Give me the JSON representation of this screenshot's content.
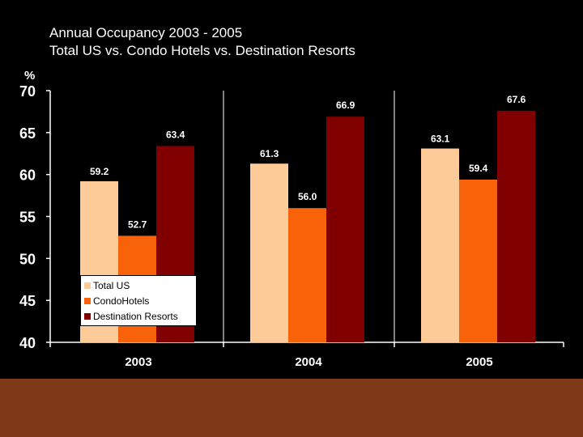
{
  "title": {
    "line1": "Annual Occupancy 2003 - 2005",
    "line2": "Total US vs. Condo Hotels vs. Destination Resorts"
  },
  "colors": {
    "background": "#000000",
    "footer": "#7f3a17",
    "text": "#ffffff"
  },
  "chart_data": {
    "type": "bar",
    "title": "Annual Occupancy 2003 - 2005 Total US vs. Condo Hotels vs. Destination Resorts",
    "xlabel": "",
    "ylabel": "%",
    "ylim": [
      40,
      70
    ],
    "yticks": [
      70,
      65,
      60,
      55,
      50,
      45,
      40
    ],
    "categories": [
      "2003",
      "2004",
      "2005"
    ],
    "series": [
      {
        "name": "Total US",
        "color": "#fccb98",
        "values": [
          59.2,
          61.3,
          63.1
        ],
        "labels": [
          "59.2",
          "61.3",
          "63.1"
        ]
      },
      {
        "name": "CondoHotels",
        "color": "#f86208",
        "values": [
          52.7,
          56.0,
          59.4
        ],
        "labels": [
          "52.7",
          "56.0",
          "59.4"
        ]
      },
      {
        "name": "Destination Resorts",
        "color": "#800000",
        "values": [
          63.4,
          66.9,
          67.6
        ],
        "labels": [
          "63.4",
          "66.9",
          "67.6"
        ]
      }
    ],
    "legend_position": "bottom-left",
    "grid": "vertical separators only"
  }
}
